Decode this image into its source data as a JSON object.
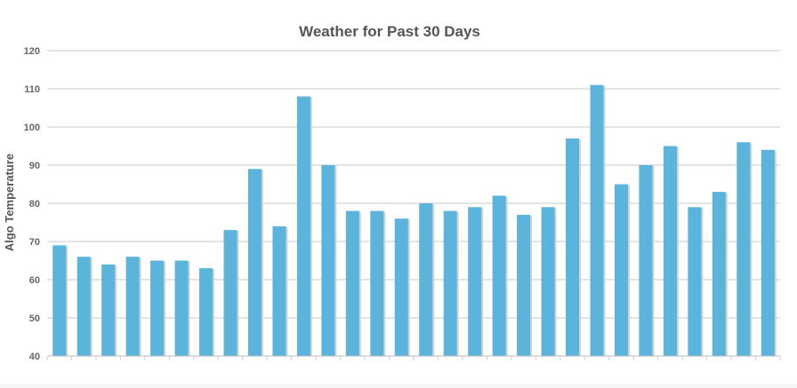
{
  "chart_data": {
    "type": "bar",
    "title": "Weather for Past 30 Days",
    "xlabel": "",
    "ylabel": "Algo Temperature",
    "ylim": [
      40,
      120
    ],
    "yticks": [
      40,
      50,
      60,
      70,
      80,
      90,
      100,
      110,
      120
    ],
    "grid": true,
    "values": [
      69,
      66,
      64,
      66,
      65,
      65,
      63,
      73,
      89,
      74,
      108,
      90,
      78,
      78,
      76,
      80,
      78,
      79,
      82,
      77,
      79,
      97,
      111,
      85,
      90,
      95,
      79,
      83,
      96,
      94
    ],
    "colors": {
      "bar": "#5ab4dc",
      "bar_shadow": "#d2d2d2"
    }
  }
}
